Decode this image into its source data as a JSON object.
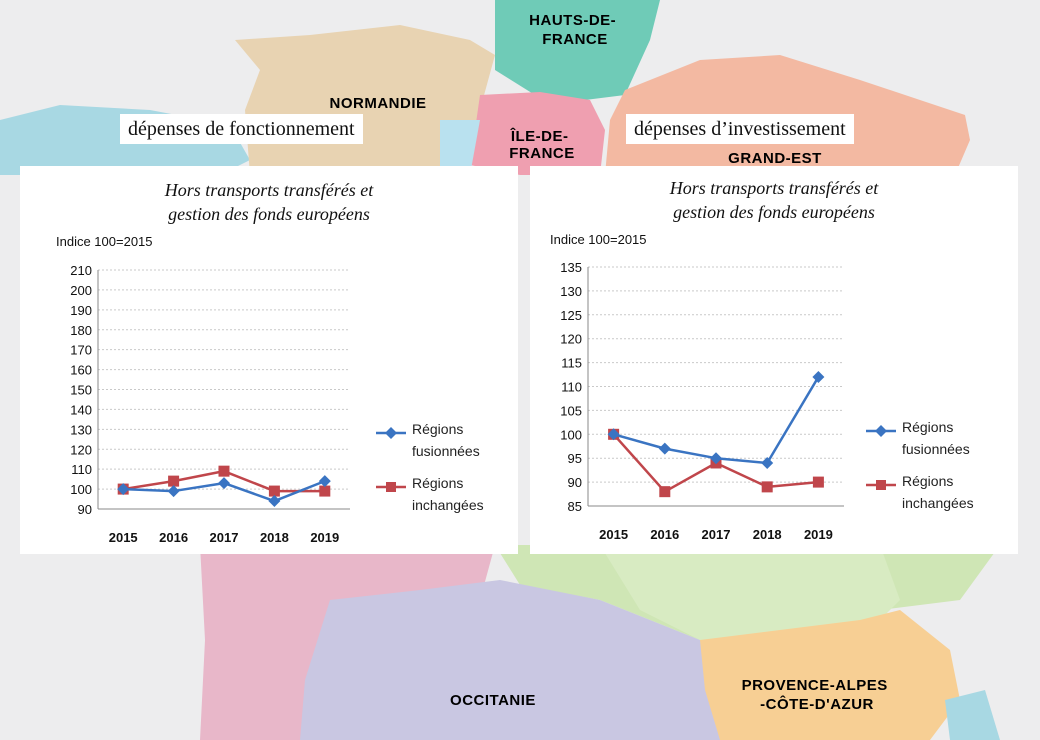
{
  "map": {
    "regions": [
      {
        "key": "hauts_de_france",
        "label_lines": [
          "HAUTS-DE-",
          "FRANCE"
        ],
        "fill": "#6fcbb7",
        "text_color": "#ffffff"
      },
      {
        "key": "normandie",
        "label_lines": [
          "NORMANDIE"
        ],
        "fill": "#e8d3b2",
        "text_color": "#d8b98a"
      },
      {
        "key": "ile_de_france",
        "label_lines": [
          "ÎLE-DE-",
          "FRANCE"
        ],
        "fill": "#ef9fb0",
        "text_color": "#ffffff"
      },
      {
        "key": "grand_est",
        "label_lines": [
          "GRAND-EST"
        ],
        "fill": "#f3b9a2",
        "text_color": "#ffffff"
      },
      {
        "key": "occitanie",
        "label_lines": [
          "OCCITANIE"
        ],
        "fill": "#c9c7e2",
        "text_color": "#8c89c4"
      },
      {
        "key": "provence",
        "label_lines": [
          "PROVENCE-ALPES",
          "-CÔTE-D'AZUR"
        ],
        "fill": "#f7cf94",
        "text_color": "#d9a664"
      }
    ]
  },
  "left_panel": {
    "section_label": "dépenses de fonctionnement",
    "title_lines": [
      "Hors transports transférés et",
      "gestion des fonds européens"
    ],
    "index_note": "Indice 100=2015"
  },
  "right_panel": {
    "section_label": "dépenses d’investissement",
    "title_lines": [
      "Hors transports transférés et",
      "gestion des fonds européens"
    ],
    "index_note": "Indice 100=2015"
  },
  "legend": {
    "fusionnees": [
      "Régions",
      "fusionnées"
    ],
    "inchangees": [
      "Régions",
      "inchangées"
    ]
  },
  "chart_data": [
    {
      "type": "line",
      "title": "Hors transports transférés et gestion des fonds européens",
      "ylabel": "Indice 100=2015",
      "x": [
        "2015",
        "2016",
        "2017",
        "2018",
        "2019"
      ],
      "ylim": [
        90,
        210
      ],
      "ytick_step": 10,
      "yticks": [
        "90",
        "100",
        "110",
        "120",
        "130",
        "140",
        "150",
        "160",
        "170",
        "180",
        "190",
        "200",
        "210"
      ],
      "grid": true,
      "legend_position": "right",
      "series": [
        {
          "name": "Régions fusionnées",
          "values": [
            100,
            99,
            103,
            94,
            104
          ],
          "color": "#3a74c2",
          "marker": "diamond"
        },
        {
          "name": "Régions inchangées",
          "values": [
            100,
            104,
            109,
            99,
            99
          ],
          "color": "#c0464b",
          "marker": "square"
        }
      ]
    },
    {
      "type": "line",
      "title": "Hors transports transférés et gestion des fonds européens",
      "ylabel": "Indice 100=2015",
      "x": [
        "2015",
        "2016",
        "2017",
        "2018",
        "2019"
      ],
      "ylim": [
        85,
        135
      ],
      "ytick_step": 5,
      "yticks": [
        "85",
        "90",
        "95",
        "100",
        "105",
        "110",
        "115",
        "120",
        "125",
        "130",
        "135"
      ],
      "grid": true,
      "legend_position": "right",
      "series": [
        {
          "name": "Régions fusionnées",
          "values": [
            100,
            97,
            95,
            94,
            112
          ],
          "color": "#3a74c2",
          "marker": "diamond"
        },
        {
          "name": "Régions inchangées",
          "values": [
            100,
            88,
            94,
            89,
            90
          ],
          "color": "#c0464b",
          "marker": "square"
        }
      ]
    }
  ]
}
